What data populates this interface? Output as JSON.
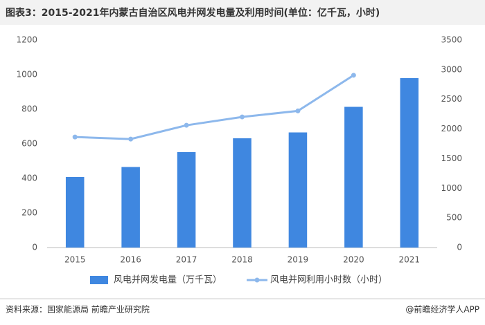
{
  "chart_data": {
    "type": "bar",
    "title": "图表3：2015-2021年内蒙古自治区风电并网发电量及利用时间(单位：亿千瓦，小时)",
    "categories": [
      "2015",
      "2016",
      "2017",
      "2018",
      "2019",
      "2020",
      "2021"
    ],
    "series": [
      {
        "name": "风电并网发电量（万千瓦）",
        "color": "#3f87e0",
        "type": "bar",
        "values": [
          408,
          466,
          552,
          632,
          666,
          814,
          980
        ]
      },
      {
        "name": "风电并网利用小时数（小时）",
        "color": "#8db8ec",
        "type": "line",
        "axis": "y2",
        "values": [
          1865,
          1830,
          2063,
          2204,
          2305,
          2907,
          null
        ]
      }
    ],
    "ylim": [
      0,
      1200
    ],
    "yticks": [
      0,
      200,
      400,
      600,
      800,
      1000,
      1200
    ],
    "y2lim": [
      0,
      3500
    ],
    "y2ticks": [
      0,
      500,
      1000,
      1500,
      2000,
      2500,
      3000,
      3500
    ],
    "source": "资料来源：国家能源局 前瞻产业研究院",
    "credit": "@前瞻经济学人APP"
  }
}
